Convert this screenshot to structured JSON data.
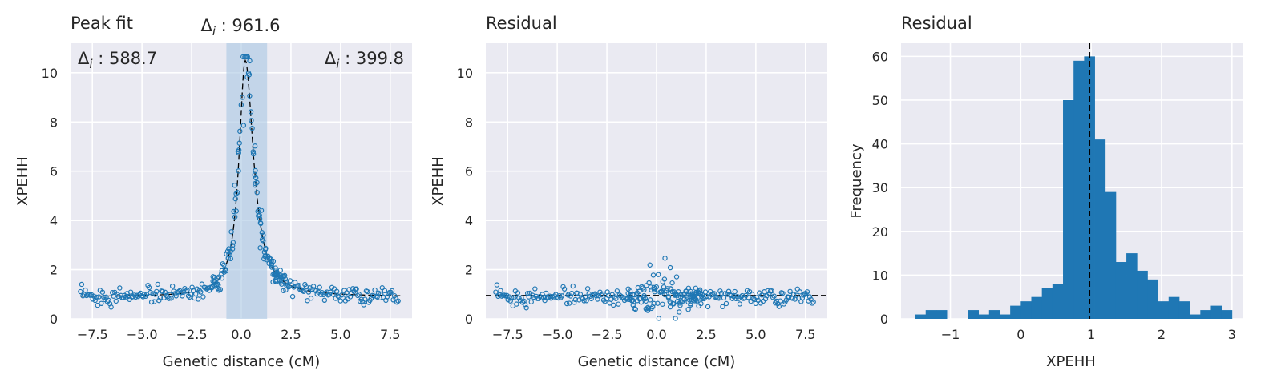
{
  "chart_data": [
    {
      "type": "scatter",
      "title": "Peak fit",
      "xlabel": "Genetic distance (cM)",
      "ylabel": "XPEHH",
      "xlim": [
        -8.6,
        8.6
      ],
      "ylim": [
        0,
        11.2
      ],
      "xticks": [
        -7.5,
        -5.0,
        -2.5,
        0.0,
        2.5,
        5.0,
        7.5
      ],
      "xtick_labels": [
        "−7.5",
        "−5.0",
        "−2.5",
        "0.0",
        "2.5",
        "5.0",
        "7.5"
      ],
      "yticks": [
        0,
        2,
        4,
        6,
        8,
        10
      ],
      "ytick_labels": [
        "0",
        "2",
        "4",
        "6",
        "8",
        "10"
      ],
      "grid": true,
      "shaded_region": [
        -0.75,
        1.3
      ],
      "annotations": {
        "left": {
          "symbol": "Δ",
          "subscript": "i",
          "text": " : 588.7"
        },
        "center": {
          "symbol": "Δ",
          "subscript": "i",
          "text": " : 961.6"
        },
        "right": {
          "symbol": "Δ",
          "subscript": "i",
          "text": " : 399.8"
        }
      },
      "fit_line": {
        "style": "dashed",
        "color": "#000000",
        "baseline": 0.9,
        "peak_x": 0.2,
        "peak_height": 9.6,
        "width_left": 0.45,
        "width_right": 0.6
      },
      "points_description": "approximately 330 points; baseline near 0.9 with noise, peak near x=0.2 reaching ~10.6"
    },
    {
      "type": "scatter",
      "title": "Residual",
      "xlabel": "Genetic distance (cM)",
      "ylabel": "XPEHH",
      "xlim": [
        -8.6,
        8.6
      ],
      "ylim": [
        0,
        11.2
      ],
      "xticks": [
        -7.5,
        -5.0,
        -2.5,
        0.0,
        2.5,
        5.0,
        7.5
      ],
      "xtick_labels": [
        "−7.5",
        "−5.0",
        "−2.5",
        "0.0",
        "2.5",
        "5.0",
        "7.5"
      ],
      "yticks": [
        0,
        2,
        4,
        6,
        8,
        10
      ],
      "ytick_labels": [
        "0",
        "2",
        "4",
        "6",
        "8",
        "10"
      ],
      "grid": true,
      "reference_line": {
        "y": 0.95,
        "style": "dashed"
      },
      "points_description": "residual values near 1, spreading between ~0 and ~2.9 around x in [-1.5, 3]"
    },
    {
      "type": "bar",
      "title": "Residual",
      "xlabel": "XPEHH",
      "ylabel": "Frequency",
      "xlim": [
        -1.7,
        3.15
      ],
      "ylim": [
        0,
        63
      ],
      "xticks": [
        -1,
        0,
        1,
        2,
        3
      ],
      "xtick_labels": [
        "−1",
        "0",
        "1",
        "2",
        "3"
      ],
      "yticks": [
        0,
        10,
        20,
        30,
        40,
        50,
        60
      ],
      "ytick_labels": [
        "0",
        "10",
        "20",
        "30",
        "40",
        "50",
        "60"
      ],
      "grid": true,
      "reference_line": {
        "x": 0.98,
        "style": "dashed"
      },
      "bin_width": 0.15,
      "bin_edges_start": -1.5,
      "values": [
        1,
        2,
        2,
        0,
        0,
        2,
        1,
        2,
        1,
        3,
        4,
        5,
        7,
        8,
        50,
        59,
        60,
        41,
        29,
        13,
        15,
        11,
        9,
        4,
        5,
        4,
        1,
        2,
        3,
        2
      ],
      "bar_color": "#1f77b4"
    }
  ],
  "colors": {
    "background": "#eaeaf2",
    "grid": "#ffffff",
    "point": "#1f77b4",
    "shade": "#a9c6e3",
    "fit": "#000000",
    "text": "#262626"
  }
}
